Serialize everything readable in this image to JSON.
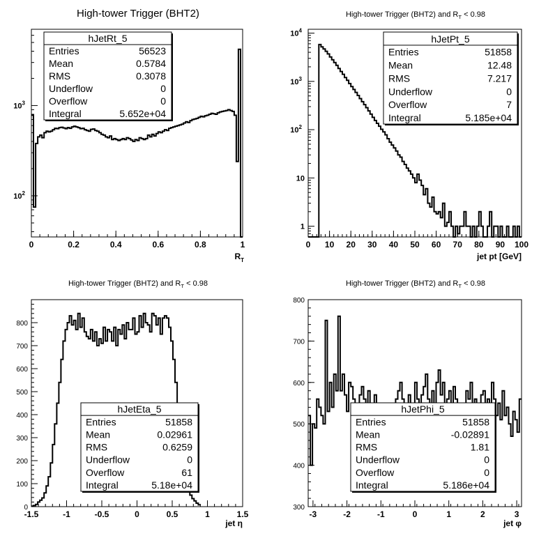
{
  "chart_data": [
    {
      "type": "histogram",
      "title": "High-tower Trigger (BHT2)",
      "title_sub": "",
      "title_suffix": "",
      "xlabel": "R",
      "xlabel_sub": "T",
      "xlim": [
        0,
        1
      ],
      "ylim": [
        35,
        7000
      ],
      "yscale": "log",
      "xticks": [
        0,
        0.2,
        0.4,
        0.6,
        0.8,
        1
      ],
      "xtick_labels": [
        "0",
        "0.2",
        "0.4",
        "0.6",
        "0.8",
        "1"
      ],
      "yticks_major": [
        100,
        1000
      ],
      "ytick_labels": [
        {
          "base": "10",
          "exp": "2"
        },
        {
          "base": "10",
          "exp": "3"
        }
      ],
      "bin_width": 0.01,
      "values": [
        780,
        75,
        380,
        450,
        470,
        440,
        500,
        520,
        510,
        520,
        540,
        560,
        555,
        570,
        575,
        565,
        555,
        570,
        560,
        580,
        590,
        580,
        570,
        555,
        560,
        540,
        530,
        520,
        545,
        550,
        530,
        520,
        500,
        480,
        470,
        450,
        440,
        460,
        420,
        430,
        420,
        410,
        420,
        430,
        420,
        440,
        430,
        415,
        400,
        420,
        410,
        440,
        430,
        420,
        430,
        470,
        450,
        480,
        460,
        490,
        510,
        500,
        520,
        540,
        530,
        560,
        570,
        580,
        590,
        600,
        610,
        620,
        640,
        660,
        650,
        680,
        700,
        710,
        720,
        740,
        760,
        750,
        770,
        780,
        800,
        820,
        810,
        800,
        830,
        850,
        860,
        870,
        880,
        900,
        880,
        860,
        780,
        240,
        4200,
        30
      ],
      "stats": {
        "name": "hJetRt_5",
        "rows": [
          {
            "label": "Entries",
            "value": "56523"
          },
          {
            "label": "Mean",
            "value": "0.5784"
          },
          {
            "label": "RMS",
            "value": "0.3078"
          },
          {
            "label": "Underflow",
            "value": "0"
          },
          {
            "label": "Overflow",
            "value": "0"
          },
          {
            "label": "Integral",
            "value": "5.652e+04"
          }
        ]
      }
    },
    {
      "type": "histogram",
      "title": "High-tower Trigger (BHT2) and R",
      "title_sub": "T",
      "title_suffix": " < 0.98",
      "xlabel": "jet pt [GeV]",
      "xlabel_sub": "",
      "xlim": [
        0,
        100
      ],
      "ylim": [
        0.6,
        12000
      ],
      "yscale": "log",
      "xticks": [
        0,
        10,
        20,
        30,
        40,
        50,
        60,
        70,
        80,
        90,
        100
      ],
      "xtick_labels": [
        "0",
        "10",
        "20",
        "30",
        "40",
        "50",
        "60",
        "70",
        "80",
        "90",
        "100"
      ],
      "yticks_major": [
        1,
        10,
        100,
        1000,
        10000
      ],
      "ytick_labels": [
        {
          "base": "1",
          "exp": ""
        },
        {
          "base": "10",
          "exp": ""
        },
        {
          "base": "10",
          "exp": "2"
        },
        {
          "base": "10",
          "exp": "3"
        },
        {
          "base": "10",
          "exp": "4"
        }
      ],
      "bin_width": 1,
      "values": [
        0,
        0,
        0,
        0,
        0,
        5800,
        5200,
        4700,
        4200,
        3700,
        3200,
        2800,
        2450,
        2150,
        1850,
        1600,
        1400,
        1200,
        1050,
        900,
        780,
        680,
        590,
        510,
        440,
        380,
        330,
        285,
        245,
        210,
        180,
        155,
        135,
        118,
        102,
        90,
        78,
        65,
        55,
        48,
        42,
        36,
        30,
        27,
        22,
        19,
        16,
        14,
        12,
        10,
        8,
        12,
        9,
        7,
        4.5,
        6,
        3,
        2.5,
        4,
        2,
        1.8,
        2,
        1.5,
        3,
        1,
        1.2,
        2,
        1,
        0,
        1,
        0.7,
        1,
        1,
        2,
        1,
        1,
        0,
        1,
        0,
        1,
        2,
        1,
        0,
        0,
        1,
        2,
        0,
        1,
        1,
        0,
        1,
        0,
        0,
        1,
        0,
        0,
        1,
        0,
        1,
        0
      ],
      "stats": {
        "name": "hJetPt_5",
        "rows": [
          {
            "label": "Entries",
            "value": "51858"
          },
          {
            "label": "Mean",
            "value": "12.48"
          },
          {
            "label": "RMS",
            "value": "7.217"
          },
          {
            "label": "Underflow",
            "value": "0"
          },
          {
            "label": "Overflow",
            "value": "7"
          },
          {
            "label": "Integral",
            "value": "5.185e+04"
          }
        ]
      }
    },
    {
      "type": "histogram",
      "title": "High-tower Trigger (BHT2) and R",
      "title_sub": "T",
      "title_suffix": " < 0.98",
      "xlabel": "jet η",
      "xlabel_sub": "",
      "xlim": [
        -1.5,
        1.5
      ],
      "ylim": [
        0,
        900
      ],
      "yscale": "linear",
      "xticks": [
        -1.5,
        -1,
        -0.5,
        0,
        0.5,
        1,
        1.5
      ],
      "xtick_labels": [
        "-1.5",
        "-1",
        "-0.5",
        "0",
        "0.5",
        "1",
        "1.5"
      ],
      "yticks_major": [
        0,
        100,
        200,
        300,
        400,
        500,
        600,
        700,
        800
      ],
      "ytick_labels": [
        "0",
        "100",
        "200",
        "300",
        "400",
        "500",
        "600",
        "700",
        "800"
      ],
      "bin_width": 0.03,
      "values": [
        2,
        5,
        10,
        20,
        28,
        38,
        60,
        90,
        130,
        190,
        270,
        360,
        450,
        540,
        640,
        720,
        770,
        800,
        830,
        790,
        810,
        770,
        840,
        780,
        820,
        760,
        740,
        730,
        770,
        720,
        760,
        700,
        730,
        710,
        780,
        720,
        770,
        760,
        720,
        780,
        700,
        770,
        750,
        790,
        730,
        800,
        770,
        770,
        820,
        750,
        760,
        830,
        780,
        840,
        800,
        790,
        760,
        840,
        830,
        790,
        820,
        750,
        820,
        830,
        820,
        780,
        720,
        640,
        540,
        440,
        350,
        260,
        180,
        120,
        80,
        50,
        35,
        25,
        15,
        8
      ],
      "bin_start": -1.5,
      "stats": {
        "name": "hJetEta_5",
        "rows": [
          {
            "label": "Entries",
            "value": "51858"
          },
          {
            "label": "Mean",
            "value": "0.02961"
          },
          {
            "label": "RMS",
            "value": "0.6259"
          },
          {
            "label": "Underflow",
            "value": "0"
          },
          {
            "label": "Overflow",
            "value": "61"
          },
          {
            "label": "Integral",
            "value": "5.18e+04"
          }
        ]
      }
    },
    {
      "type": "histogram",
      "title": "High-tower Trigger (BHT2) and R",
      "title_sub": "T",
      "title_suffix": " < 0.98",
      "xlabel": "jet φ",
      "xlabel_sub": "",
      "xlim": [
        -3.1416,
        3.1416
      ],
      "ylim": [
        300,
        800
      ],
      "yscale": "linear",
      "xticks": [
        -3,
        -2,
        -1,
        0,
        1,
        2,
        3
      ],
      "xtick_labels": [
        "-3",
        "-2",
        "-1",
        "0",
        "1",
        "2",
        "3"
      ],
      "yticks_major": [
        300,
        400,
        500,
        600,
        700,
        800
      ],
      "ytick_labels": [
        "300",
        "400",
        "500",
        "600",
        "700",
        "800"
      ],
      "bin_width": 0.0628,
      "values": [
        520,
        400,
        500,
        490,
        560,
        540,
        520,
        500,
        750,
        530,
        600,
        540,
        620,
        580,
        760,
        580,
        620,
        570,
        530,
        600,
        590,
        560,
        540,
        510,
        570,
        590,
        560,
        530,
        580,
        500,
        520,
        570,
        540,
        500,
        510,
        480,
        530,
        490,
        520,
        470,
        510,
        560,
        580,
        600,
        560,
        550,
        500,
        570,
        540,
        520,
        600,
        560,
        540,
        570,
        590,
        620,
        560,
        540,
        580,
        520,
        600,
        630,
        570,
        600,
        540,
        560,
        580,
        520,
        590,
        560,
        500,
        550,
        540,
        520,
        580,
        560,
        600,
        550,
        560,
        520,
        540,
        570,
        580,
        520,
        560,
        540,
        600,
        560,
        520,
        550,
        510,
        580,
        520,
        540,
        500,
        470,
        530,
        510,
        480,
        560
      ],
      "stats": {
        "name": "hJetPhi_5",
        "rows": [
          {
            "label": "Entries",
            "value": "51858"
          },
          {
            "label": "Mean",
            "value": "-0.02891"
          },
          {
            "label": "RMS",
            "value": "1.81"
          },
          {
            "label": "Underflow",
            "value": "0"
          },
          {
            "label": "Overflow",
            "value": "0"
          },
          {
            "label": "Integral",
            "value": "5.186e+04"
          }
        ]
      }
    }
  ]
}
